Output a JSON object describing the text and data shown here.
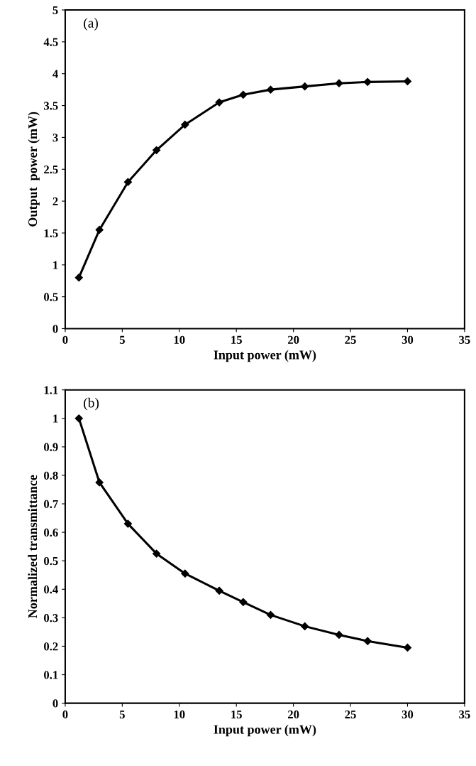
{
  "chart_data": [
    {
      "type": "line",
      "xlabel": "Input power (mW)",
      "ylabel": "Output  power (mW)",
      "annotations": [
        "(a)"
      ],
      "marker": "diamond",
      "grid": false,
      "legend": false,
      "series": [
        {
          "color": "#000000",
          "x": [
            1.2,
            3,
            5.5,
            8,
            10.5,
            13.5,
            15.6,
            18,
            21,
            24,
            26.5,
            30
          ],
          "values": [
            0.8,
            1.55,
            2.3,
            2.8,
            3.2,
            3.55,
            3.67,
            3.75,
            3.8,
            3.85,
            3.87,
            3.88
          ]
        }
      ],
      "xlim": [
        0,
        35
      ],
      "xticks": [
        0,
        5,
        10,
        15,
        20,
        25,
        30,
        35
      ],
      "ylim": [
        0,
        5
      ],
      "yticks": [
        0,
        0.5,
        1,
        1.5,
        2,
        2.5,
        3,
        3.5,
        4,
        4.5,
        5
      ]
    },
    {
      "type": "line",
      "xlabel": "Input power (mW)",
      "ylabel": "Normalized transmittance",
      "annotations": [
        "(b)"
      ],
      "marker": "diamond",
      "grid": false,
      "legend": false,
      "series": [
        {
          "color": "#000000",
          "x": [
            1.2,
            3,
            5.5,
            8,
            10.5,
            13.5,
            15.6,
            18,
            21,
            24,
            26.5,
            30
          ],
          "values": [
            1.0,
            0.775,
            0.63,
            0.525,
            0.455,
            0.395,
            0.355,
            0.31,
            0.27,
            0.24,
            0.218,
            0.195
          ]
        }
      ],
      "xlim": [
        0,
        35
      ],
      "xticks": [
        0,
        5,
        10,
        15,
        20,
        25,
        30,
        35
      ],
      "ylim": [
        0,
        1.1
      ],
      "yticks": [
        0,
        0.1,
        0.2,
        0.3,
        0.4,
        0.5,
        0.6,
        0.7,
        0.8,
        0.9,
        1,
        1.1
      ]
    }
  ]
}
